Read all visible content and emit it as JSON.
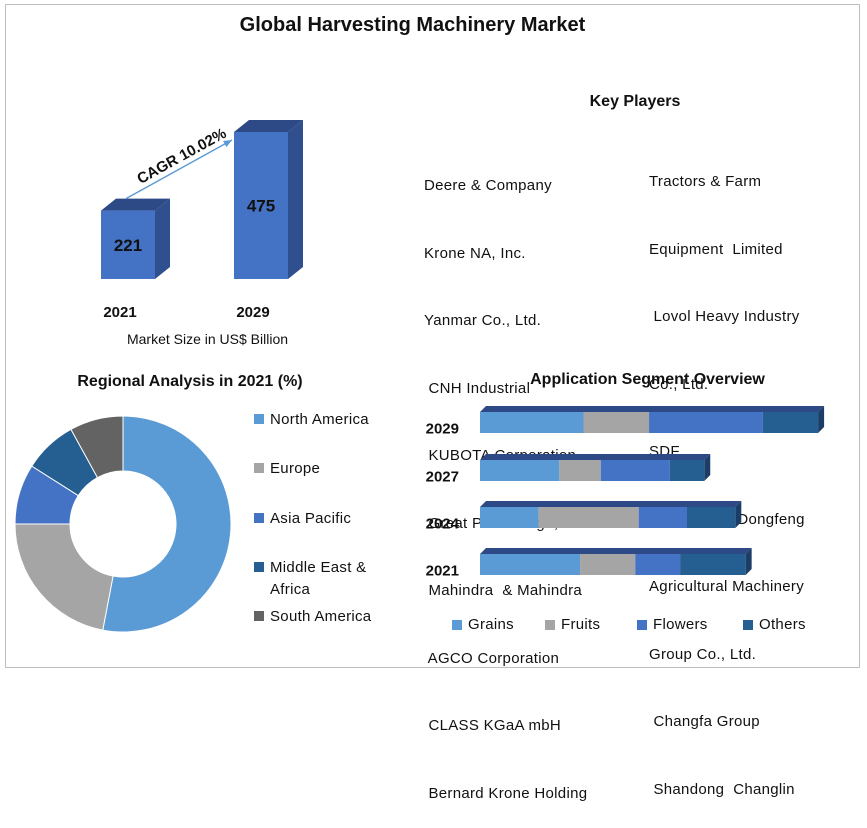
{
  "title": "Global Harvesting Machinery Market",
  "colors": {
    "bar_front": "#4472c4",
    "bar_side": "#2f4f8f",
    "bar_top": "#2e4a86",
    "arrow": "#5b9bd5",
    "grains": "#5b9bd5",
    "fruits": "#a5a5a5",
    "flowers": "#4472c4",
    "others": "#255e91",
    "south_america": "#636363"
  },
  "key_players": {
    "title": "Key Players",
    "left": [
      "Deere & Company",
      "Krone NA, Inc.",
      "Yanmar Co., Ltd.",
      " CNH Industrial",
      " KUBOTA Corporation",
      " Great Plains Mfg. ,Inc.",
      " Mahindra  & Mahindra",
      " AGCO Corporation",
      " CLASS KGaA mbH",
      " Bernard Krone Holding"
    ],
    "right": [
      "Tractors & Farm",
      "Equipment  Limited",
      " Lovol Heavy Industry",
      "Co., Ltd.",
      "SDF",
      " Changzhou Dongfeng",
      "Agricultural Machinery",
      "Group Co., Ltd.",
      " Changfa Group",
      " Shandong  Changlin"
    ]
  },
  "market_size_caption": "Market Size in US$ Billion",
  "regional_title": "Regional Analysis in 2021 (%)",
  "application_title": "Application Segment Overview",
  "chart_data": [
    {
      "type": "bar",
      "categories": [
        "2021",
        "2029"
      ],
      "values": [
        221,
        475
      ],
      "xlabel": "Market Size in US$ Billion",
      "annotation": "CAGR 10.02%"
    },
    {
      "type": "pie",
      "title": "Regional Analysis in 2021 (%)",
      "labels": [
        "North America",
        "Europe",
        "Asia Pacific",
        "Middle East & Africa",
        "South America"
      ],
      "values": [
        53,
        22,
        9,
        8,
        8
      ],
      "colors": [
        "#5b9bd5",
        "#a5a5a5",
        "#4472c4",
        "#255e91",
        "#636363"
      ]
    },
    {
      "type": "bar",
      "orientation": "horizontal",
      "stacked": true,
      "title": "Application Segment Overview",
      "categories": [
        "2029",
        "2027",
        "2024",
        "2021"
      ],
      "series": [
        {
          "name": "Grains",
          "values": [
            30,
            23,
            17,
            29
          ]
        },
        {
          "name": "Fruits",
          "values": [
            19,
            12,
            29,
            16
          ]
        },
        {
          "name": "Flowers",
          "values": [
            33,
            20,
            14,
            13
          ]
        },
        {
          "name": "Others",
          "values": [
            16,
            10,
            14,
            19
          ]
        }
      ]
    }
  ]
}
